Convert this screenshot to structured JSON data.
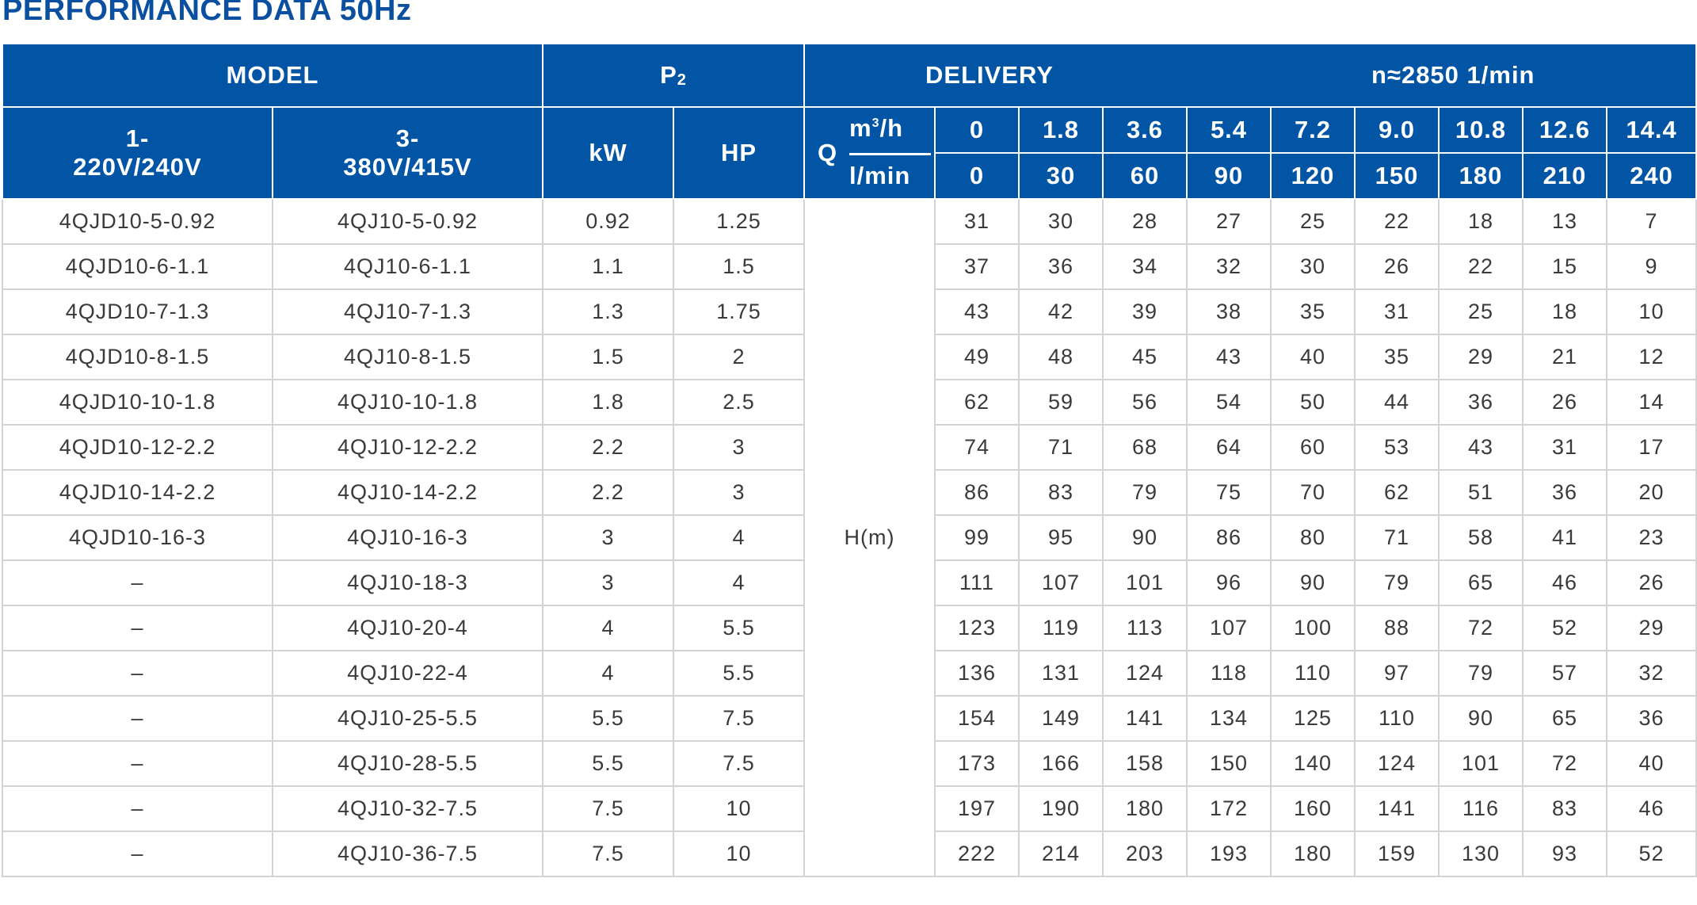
{
  "title": "PERFORMANCE DATA 50Hz",
  "header": {
    "model": "MODEL",
    "p2_letter": "P",
    "p2_sub": "2",
    "delivery": "DELIVERY",
    "speed": "n≈2850  1/min",
    "single_phase_line1": "1-",
    "single_phase_line2": "220V/240V",
    "three_phase_line1": "3-",
    "three_phase_line2": "380V/415V",
    "kw": "kW",
    "hp": "HP",
    "q": "Q",
    "unit_m3h_base": "m",
    "unit_m3h_exp": "3",
    "unit_m3h_tail": "/h",
    "unit_lmin": "l/min",
    "head_label": "H(m)"
  },
  "flow_m3h": [
    "0",
    "1.8",
    "3.6",
    "5.4",
    "7.2",
    "9.0",
    "10.8",
    "12.6",
    "14.4"
  ],
  "flow_lmin": [
    "0",
    "30",
    "60",
    "90",
    "120",
    "150",
    "180",
    "210",
    "240"
  ],
  "rows": [
    {
      "single": "4QJD10-5-0.92",
      "three": "4QJ10-5-0.92",
      "kw": "0.92",
      "hp": "1.25",
      "h": [
        "31",
        "30",
        "28",
        "27",
        "25",
        "22",
        "18",
        "13",
        "7"
      ]
    },
    {
      "single": "4QJD10-6-1.1",
      "three": "4QJ10-6-1.1",
      "kw": "1.1",
      "hp": "1.5",
      "h": [
        "37",
        "36",
        "34",
        "32",
        "30",
        "26",
        "22",
        "15",
        "9"
      ]
    },
    {
      "single": "4QJD10-7-1.3",
      "three": "4QJ10-7-1.3",
      "kw": "1.3",
      "hp": "1.75",
      "h": [
        "43",
        "42",
        "39",
        "38",
        "35",
        "31",
        "25",
        "18",
        "10"
      ]
    },
    {
      "single": "4QJD10-8-1.5",
      "three": "4QJ10-8-1.5",
      "kw": "1.5",
      "hp": "2",
      "h": [
        "49",
        "48",
        "45",
        "43",
        "40",
        "35",
        "29",
        "21",
        "12"
      ]
    },
    {
      "single": "4QJD10-10-1.8",
      "three": "4QJ10-10-1.8",
      "kw": "1.8",
      "hp": "2.5",
      "h": [
        "62",
        "59",
        "56",
        "54",
        "50",
        "44",
        "36",
        "26",
        "14"
      ]
    },
    {
      "single": "4QJD10-12-2.2",
      "three": "4QJ10-12-2.2",
      "kw": "2.2",
      "hp": "3",
      "h": [
        "74",
        "71",
        "68",
        "64",
        "60",
        "53",
        "43",
        "31",
        "17"
      ]
    },
    {
      "single": "4QJD10-14-2.2",
      "three": "4QJ10-14-2.2",
      "kw": "2.2",
      "hp": "3",
      "h": [
        "86",
        "83",
        "79",
        "75",
        "70",
        "62",
        "51",
        "36",
        "20"
      ]
    },
    {
      "single": "4QJD10-16-3",
      "three": "4QJ10-16-3",
      "kw": "3",
      "hp": "4",
      "h": [
        "99",
        "95",
        "90",
        "86",
        "80",
        "71",
        "58",
        "41",
        "23"
      ]
    },
    {
      "single": "–",
      "three": "4QJ10-18-3",
      "kw": "3",
      "hp": "4",
      "h": [
        "111",
        "107",
        "101",
        "96",
        "90",
        "79",
        "65",
        "46",
        "26"
      ]
    },
    {
      "single": "–",
      "three": "4QJ10-20-4",
      "kw": "4",
      "hp": "5.5",
      "h": [
        "123",
        "119",
        "113",
        "107",
        "100",
        "88",
        "72",
        "52",
        "29"
      ]
    },
    {
      "single": "–",
      "three": "4QJ10-22-4",
      "kw": "4",
      "hp": "5.5",
      "h": [
        "136",
        "131",
        "124",
        "118",
        "110",
        "97",
        "79",
        "57",
        "32"
      ]
    },
    {
      "single": "–",
      "three": "4QJ10-25-5.5",
      "kw": "5.5",
      "hp": "7.5",
      "h": [
        "154",
        "149",
        "141",
        "134",
        "125",
        "110",
        "90",
        "65",
        "36"
      ]
    },
    {
      "single": "–",
      "three": "4QJ10-28-5.5",
      "kw": "5.5",
      "hp": "7.5",
      "h": [
        "173",
        "166",
        "158",
        "150",
        "140",
        "124",
        "101",
        "72",
        "40"
      ]
    },
    {
      "single": "–",
      "three": "4QJ10-32-7.5",
      "kw": "7.5",
      "hp": "10",
      "h": [
        "197",
        "190",
        "180",
        "172",
        "160",
        "141",
        "116",
        "83",
        "46"
      ]
    },
    {
      "single": "–",
      "three": "4QJ10-36-7.5",
      "kw": "7.5",
      "hp": "10",
      "h": [
        "222",
        "214",
        "203",
        "193",
        "180",
        "159",
        "130",
        "93",
        "52"
      ]
    }
  ],
  "colors": {
    "header_blue": "#0254a5",
    "title_blue": "#0a4fa0",
    "grid_gray": "#d3d3d3",
    "cell_text": "#3a3a3a"
  }
}
